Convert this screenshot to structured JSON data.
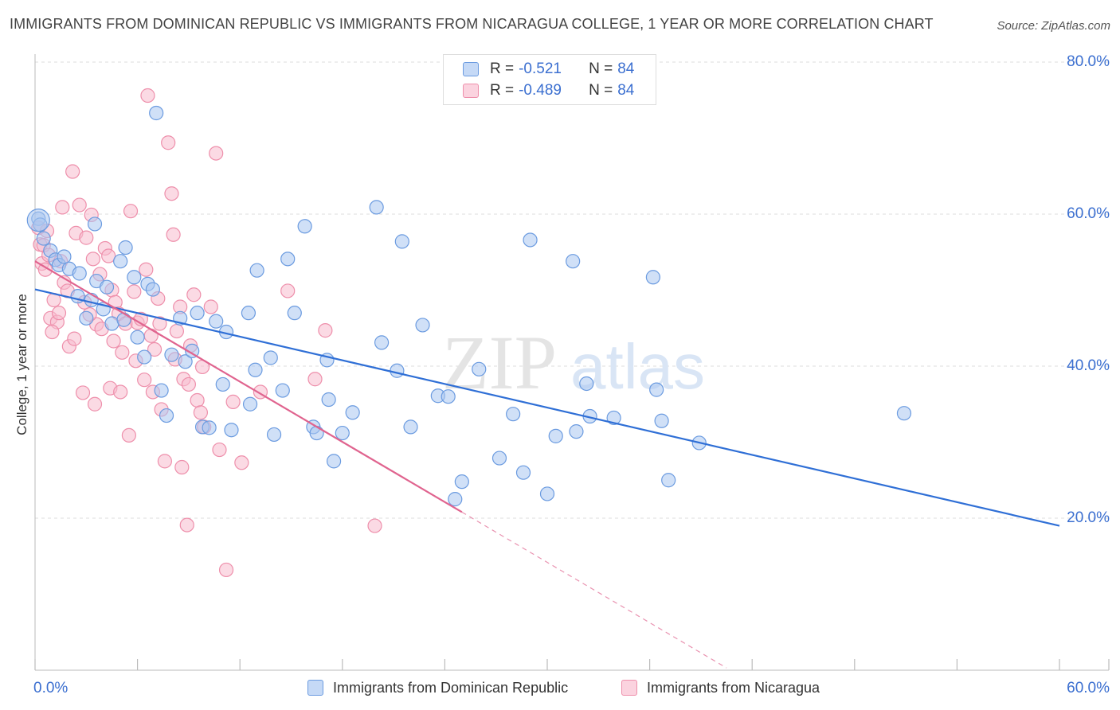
{
  "title": "IMMIGRANTS FROM DOMINICAN REPUBLIC VS IMMIGRANTS FROM NICARAGUA COLLEGE, 1 YEAR OR MORE CORRELATION CHART",
  "source": "Source: ZipAtlas.com",
  "watermark": {
    "zip": "ZIP",
    "atlas": "atlas"
  },
  "legend": {
    "rows": [
      {
        "r_label": "R =",
        "r_value": "-0.521",
        "n_label": "N =",
        "n_value": "84"
      },
      {
        "r_label": "R =",
        "r_value": "-0.489",
        "n_label": "N =",
        "n_value": "84"
      }
    ]
  },
  "bottom_legend": {
    "items": [
      {
        "label": "Immigrants from Dominican Republic"
      },
      {
        "label": "Immigrants from Nicaragua"
      }
    ]
  },
  "colors": {
    "blue_fill": "#a9c6f0",
    "blue_stroke": "#6b9be0",
    "blue_line": "#2f6fd6",
    "pink_fill": "#f7bccd",
    "pink_stroke": "#ee8fab",
    "pink_line": "#e0648f",
    "axis_label": "#3b6fd0",
    "grid": "#dddddd"
  },
  "chart_data": {
    "type": "scatter",
    "title": "IMMIGRANTS FROM DOMINICAN REPUBLIC VS IMMIGRANTS FROM NICARAGUA COLLEGE, 1 YEAR OR MORE CORRELATION CHART",
    "xlabel": "",
    "ylabel": "College, 1 year or more",
    "xlim": [
      0,
      60
    ],
    "ylim": [
      0,
      80
    ],
    "x_tick_labels": [
      "0.0%",
      "60.0%"
    ],
    "y_ticks": [
      20,
      40,
      60,
      80
    ],
    "y_tick_labels": [
      "20.0%",
      "40.0%",
      "60.0%",
      "80.0%"
    ],
    "grid": true,
    "legend_position": "top-center",
    "series": [
      {
        "name": "Immigrants from Dominican Republic",
        "r": -0.521,
        "n": 84,
        "trend": {
          "x": [
            0,
            60
          ],
          "y": [
            50.1,
            19.0
          ]
        },
        "points": [
          [
            0.2,
            59.4
          ],
          [
            0.3,
            58.6
          ],
          [
            0.5,
            56.8
          ],
          [
            0.9,
            55.2
          ],
          [
            1.2,
            54.0
          ],
          [
            1.4,
            53.3
          ],
          [
            2.0,
            52.8
          ],
          [
            2.6,
            52.2
          ],
          [
            3.5,
            58.7
          ],
          [
            3.6,
            51.2
          ],
          [
            4.2,
            50.4
          ],
          [
            5.0,
            53.8
          ],
          [
            5.3,
            55.6
          ],
          [
            5.8,
            51.7
          ],
          [
            6.6,
            50.8
          ],
          [
            7.1,
            73.3
          ],
          [
            2.5,
            49.2
          ],
          [
            3.0,
            46.3
          ],
          [
            4.0,
            47.5
          ],
          [
            4.5,
            45.6
          ],
          [
            5.2,
            46.1
          ],
          [
            6.0,
            43.8
          ],
          [
            6.4,
            41.2
          ],
          [
            7.4,
            36.8
          ],
          [
            7.7,
            33.5
          ],
          [
            8.0,
            41.5
          ],
          [
            8.5,
            46.3
          ],
          [
            8.8,
            40.6
          ],
          [
            9.2,
            42.0
          ],
          [
            9.5,
            47.0
          ],
          [
            9.8,
            32.0
          ],
          [
            10.2,
            31.9
          ],
          [
            10.6,
            45.9
          ],
          [
            11.0,
            37.6
          ],
          [
            11.2,
            44.5
          ],
          [
            11.5,
            31.6
          ],
          [
            12.5,
            47.0
          ],
          [
            12.6,
            35.0
          ],
          [
            12.9,
            39.5
          ],
          [
            13.0,
            52.6
          ],
          [
            13.8,
            41.1
          ],
          [
            14.0,
            31.0
          ],
          [
            14.5,
            36.8
          ],
          [
            14.8,
            54.1
          ],
          [
            15.2,
            47.0
          ],
          [
            15.8,
            58.4
          ],
          [
            16.3,
            32.0
          ],
          [
            16.5,
            31.2
          ],
          [
            17.1,
            40.8
          ],
          [
            17.2,
            35.6
          ],
          [
            17.5,
            27.5
          ],
          [
            18.0,
            31.2
          ],
          [
            18.6,
            33.9
          ],
          [
            20.0,
            60.9
          ],
          [
            20.3,
            43.1
          ],
          [
            21.2,
            39.4
          ],
          [
            21.5,
            56.4
          ],
          [
            22.0,
            32.0
          ],
          [
            22.7,
            45.4
          ],
          [
            23.6,
            36.1
          ],
          [
            24.2,
            36.0
          ],
          [
            25.0,
            24.8
          ],
          [
            26.0,
            39.6
          ],
          [
            27.2,
            27.9
          ],
          [
            28.0,
            33.7
          ],
          [
            28.6,
            26.0
          ],
          [
            29.0,
            56.6
          ],
          [
            30.5,
            30.8
          ],
          [
            31.5,
            53.8
          ],
          [
            31.7,
            31.4
          ],
          [
            32.3,
            37.7
          ],
          [
            32.5,
            33.4
          ],
          [
            33.9,
            33.2
          ],
          [
            36.2,
            51.7
          ],
          [
            36.4,
            36.9
          ],
          [
            36.7,
            32.8
          ],
          [
            37.1,
            25.0
          ],
          [
            38.9,
            29.9
          ],
          [
            50.9,
            33.8
          ],
          [
            1.7,
            54.4
          ],
          [
            3.3,
            48.7
          ],
          [
            6.9,
            50.1
          ],
          [
            24.6,
            22.5
          ],
          [
            30.0,
            23.2
          ]
        ]
      },
      {
        "name": "Immigrants from Nicaragua",
        "r": -0.489,
        "n": 84,
        "trend": {
          "x": [
            0,
            25
          ],
          "y": [
            53.8,
            20.8
          ]
        },
        "trend_dashed": {
          "x": [
            25,
            40.5
          ],
          "y": [
            20.8,
            0.3
          ]
        },
        "points": [
          [
            0.2,
            58.2
          ],
          [
            0.3,
            56.0
          ],
          [
            0.4,
            53.5
          ],
          [
            0.5,
            55.9
          ],
          [
            0.6,
            52.7
          ],
          [
            0.8,
            54.6
          ],
          [
            0.9,
            46.3
          ],
          [
            1.1,
            48.7
          ],
          [
            1.3,
            45.8
          ],
          [
            1.4,
            47.0
          ],
          [
            1.5,
            53.8
          ],
          [
            1.7,
            51.0
          ],
          [
            1.9,
            49.9
          ],
          [
            2.2,
            65.6
          ],
          [
            2.4,
            57.5
          ],
          [
            2.6,
            61.2
          ],
          [
            2.9,
            48.4
          ],
          [
            3.0,
            56.9
          ],
          [
            3.3,
            59.9
          ],
          [
            3.4,
            54.1
          ],
          [
            3.6,
            45.5
          ],
          [
            3.8,
            52.1
          ],
          [
            3.9,
            44.9
          ],
          [
            4.1,
            55.5
          ],
          [
            4.3,
            54.5
          ],
          [
            4.5,
            50.0
          ],
          [
            4.7,
            48.4
          ],
          [
            4.9,
            46.9
          ],
          [
            5.1,
            41.8
          ],
          [
            5.3,
            45.6
          ],
          [
            5.6,
            60.4
          ],
          [
            5.8,
            49.8
          ],
          [
            6.0,
            45.7
          ],
          [
            6.2,
            46.2
          ],
          [
            6.4,
            38.2
          ],
          [
            6.6,
            75.6
          ],
          [
            6.8,
            44.0
          ],
          [
            7.0,
            42.2
          ],
          [
            7.2,
            48.9
          ],
          [
            7.4,
            34.3
          ],
          [
            7.6,
            27.5
          ],
          [
            7.8,
            69.4
          ],
          [
            8.0,
            62.7
          ],
          [
            8.1,
            57.3
          ],
          [
            8.3,
            44.6
          ],
          [
            8.5,
            47.8
          ],
          [
            8.7,
            38.3
          ],
          [
            8.9,
            19.1
          ],
          [
            9.1,
            42.7
          ],
          [
            9.3,
            49.4
          ],
          [
            9.5,
            35.5
          ],
          [
            9.7,
            33.9
          ],
          [
            9.9,
            32.0
          ],
          [
            10.3,
            47.8
          ],
          [
            10.6,
            68.0
          ],
          [
            10.8,
            29.0
          ],
          [
            11.2,
            13.2
          ],
          [
            12.1,
            27.3
          ],
          [
            14.8,
            49.9
          ],
          [
            16.4,
            38.3
          ],
          [
            17.0,
            44.7
          ],
          [
            19.9,
            19.0
          ],
          [
            2.8,
            36.5
          ],
          [
            3.5,
            35.0
          ],
          [
            4.4,
            37.1
          ],
          [
            5.0,
            36.6
          ],
          [
            5.5,
            30.9
          ],
          [
            6.9,
            36.6
          ],
          [
            8.6,
            26.7
          ],
          [
            1.0,
            44.5
          ],
          [
            2.0,
            42.6
          ],
          [
            3.2,
            46.8
          ],
          [
            4.6,
            43.3
          ],
          [
            5.9,
            40.7
          ],
          [
            6.5,
            52.7
          ],
          [
            7.3,
            45.6
          ],
          [
            8.2,
            40.9
          ],
          [
            9.0,
            37.6
          ],
          [
            0.7,
            57.8
          ],
          [
            1.6,
            60.9
          ],
          [
            2.3,
            43.6
          ],
          [
            9.8,
            39.9
          ],
          [
            11.6,
            35.3
          ],
          [
            13.2,
            36.6
          ]
        ]
      }
    ]
  }
}
